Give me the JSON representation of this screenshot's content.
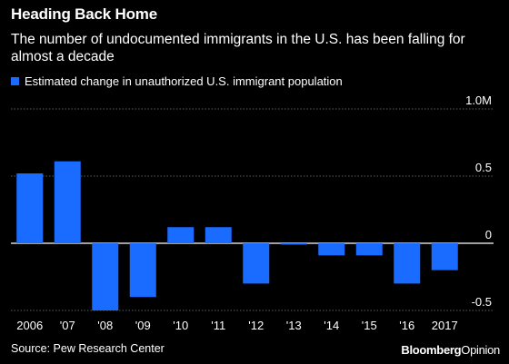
{
  "header": {
    "title": "Heading Back Home",
    "subtitle": "The number of undocumented immigrants in the U.S. has been falling for almost a decade"
  },
  "legend": {
    "label": "Estimated change in unauthorized U.S. immigrant population"
  },
  "footer": {
    "source": "Source: Pew Research Center",
    "brand_bold": "Bloomberg",
    "brand_light": "Opinion"
  },
  "colors": {
    "background": "#000000",
    "bar": "#1a6bff",
    "grid": "#7a7a7a",
    "zero_line": "#ffffff",
    "text": "#ffffff"
  },
  "chart_data": {
    "type": "bar",
    "categories": [
      "2006",
      "'07",
      "'08",
      "'09",
      "'10",
      "'11",
      "'12",
      "'13",
      "'14",
      "'15",
      "'16",
      "2017"
    ],
    "values": [
      0.52,
      0.61,
      -0.5,
      -0.4,
      0.12,
      0.12,
      -0.3,
      -0.01,
      -0.09,
      -0.09,
      -0.3,
      -0.2
    ],
    "ylim": [
      -0.55,
      1.0
    ],
    "yticks": [
      {
        "value": 1.0,
        "label": "1.0M"
      },
      {
        "value": 0.5,
        "label": "0.5"
      },
      {
        "value": 0,
        "label": "0"
      },
      {
        "value": -0.5,
        "label": "-0.5"
      }
    ],
    "grid": true,
    "legend_position": "top-left"
  }
}
